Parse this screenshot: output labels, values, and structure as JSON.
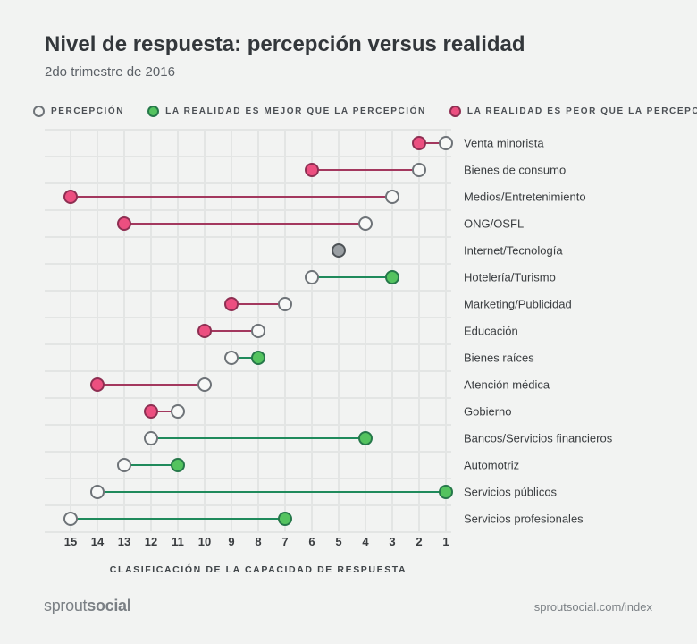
{
  "title": "Nivel de respuesta: percepción versus realidad",
  "subtitle": "2do trimestre de 2016",
  "legend": {
    "perception": "PERCEPCIÓN",
    "better": "LA REALIDAD ES MEJOR QUE LA PERCEPCIÓN",
    "worse": "LA REALIDAD ES PEOR QUE LA PERCEPCIÓN"
  },
  "colors": {
    "better_fill": "#54c35f",
    "better_stroke": "#26784a",
    "better_line": "#1f8a5b",
    "worse_fill": "#ec4f80",
    "worse_stroke": "#8e2f52",
    "worse_line": "#a3385e",
    "perception_stroke": "#6e7378",
    "equal_fill": "#9a9fa3",
    "grid": "#e3e5e4"
  },
  "footer": {
    "logo_light": "sprout",
    "logo_bold": "social",
    "url": "sproutsocial.com/index"
  },
  "chart_data": {
    "type": "dumbbell",
    "xlabel": "CLASIFICACIÓN DE LA CAPACIDAD DE RESPUESTA",
    "xlim": [
      15,
      1
    ],
    "x_reversed": true,
    "ticks": [
      15,
      14,
      13,
      12,
      11,
      10,
      9,
      8,
      7,
      6,
      5,
      4,
      3,
      2,
      1
    ],
    "grid": true,
    "series_names": [
      "Percepción",
      "Realidad"
    ],
    "rows": [
      {
        "label": "Venta minorista",
        "perception": 1,
        "reality": 2
      },
      {
        "label": "Bienes de consumo",
        "perception": 2,
        "reality": 6
      },
      {
        "label": "Medios/Entretenimiento",
        "perception": 3,
        "reality": 15
      },
      {
        "label": "ONG/OSFL",
        "perception": 4,
        "reality": 13
      },
      {
        "label": "Internet/Tecnología",
        "perception": 5,
        "reality": 5
      },
      {
        "label": "Hotelería/Turismo",
        "perception": 6,
        "reality": 3
      },
      {
        "label": "Marketing/Publicidad",
        "perception": 7,
        "reality": 9
      },
      {
        "label": "Educación",
        "perception": 8,
        "reality": 10
      },
      {
        "label": "Bienes raíces",
        "perception": 9,
        "reality": 8
      },
      {
        "label": "Atención médica",
        "perception": 10,
        "reality": 14
      },
      {
        "label": "Gobierno",
        "perception": 11,
        "reality": 12
      },
      {
        "label": "Bancos/Servicios financieros",
        "perception": 12,
        "reality": 4
      },
      {
        "label": "Automotriz",
        "perception": 13,
        "reality": 11
      },
      {
        "label": "Servicios públicos",
        "perception": 14,
        "reality": 1
      },
      {
        "label": "Servicios profesionales",
        "perception": 15,
        "reality": 7
      }
    ]
  }
}
